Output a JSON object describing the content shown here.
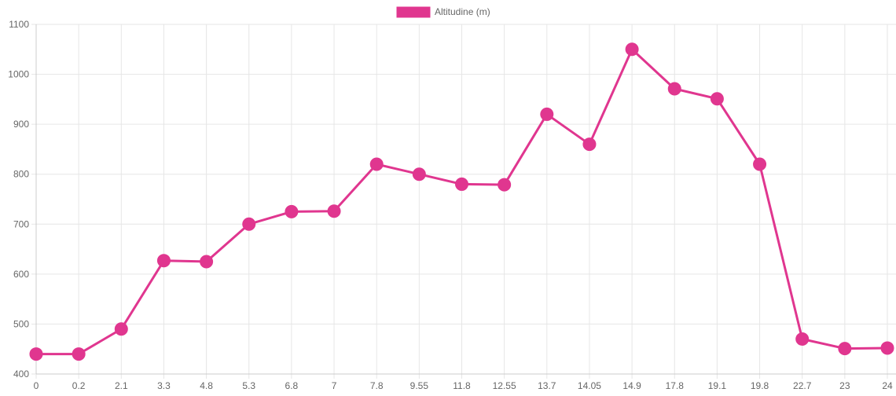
{
  "chart_data": {
    "type": "line",
    "categories": [
      "0",
      "0.2",
      "2.1",
      "3.3",
      "4.8",
      "5.3",
      "6.8",
      "7",
      "7.8",
      "9.55",
      "11.8",
      "12.55",
      "13.7",
      "14.05",
      "14.9",
      "17.8",
      "19.1",
      "19.8",
      "22.7",
      "23",
      "24"
    ],
    "series": [
      {
        "name": "Altitudine (m)",
        "values": [
          440,
          440,
          490,
          627,
          625,
          700,
          725,
          726,
          820,
          800,
          780,
          779,
          920,
          860,
          1050,
          971,
          951,
          820,
          470,
          451,
          452
        ],
        "color": "#e0368f"
      }
    ],
    "yticks": [
      400,
      500,
      600,
      700,
      800,
      900,
      1000,
      1100
    ],
    "ylim": [
      400,
      1100
    ],
    "grid": true,
    "legend_position": "top-center"
  }
}
